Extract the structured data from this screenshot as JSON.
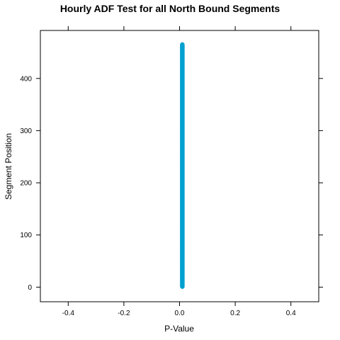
{
  "chart_data": {
    "type": "scatter",
    "title": "Hourly ADF Test for all North Bound Segments",
    "xlabel": "P-Value",
    "ylabel": "Segment Position",
    "xlim": [
      -0.5,
      0.5
    ],
    "ylim": [
      -28,
      492
    ],
    "x_ticks": [
      -0.4,
      -0.2,
      0.0,
      0.2,
      0.4
    ],
    "x_tick_labels": [
      "-0.4",
      "-0.2",
      "0.0",
      "0.2",
      "0.4"
    ],
    "y_ticks": [
      0,
      100,
      200,
      300,
      400
    ],
    "y_tick_labels": [
      "0",
      "100",
      "200",
      "300",
      "400"
    ],
    "grid": false,
    "series": [
      {
        "color": "#00a0d0",
        "x_value": 0.01,
        "y_range": [
          1,
          465
        ],
        "note_count": 465
      }
    ]
  }
}
